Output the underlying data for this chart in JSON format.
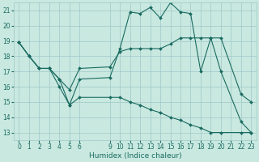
{
  "xlabel": "Humidex (Indice chaleur)",
  "bg_color": "#c8e8e0",
  "grid_color": "#a0c8c8",
  "line_color": "#1a6b60",
  "xlim": [
    -0.5,
    23.5
  ],
  "ylim": [
    12.5,
    21.5
  ],
  "yticks": [
    13,
    14,
    15,
    16,
    17,
    18,
    19,
    20,
    21
  ],
  "xticks": [
    0,
    1,
    2,
    3,
    4,
    5,
    6,
    9,
    10,
    11,
    12,
    13,
    14,
    15,
    16,
    17,
    18,
    19,
    20,
    21,
    22,
    23
  ],
  "line1_x": [
    0,
    1,
    2,
    3,
    4,
    5,
    6,
    9,
    10,
    11,
    12,
    13,
    14,
    15,
    16,
    17,
    18,
    19,
    20,
    22,
    23
  ],
  "line1_y": [
    18.9,
    18.0,
    17.2,
    17.2,
    16.0,
    14.8,
    16.5,
    16.6,
    18.5,
    20.9,
    20.8,
    21.2,
    20.5,
    21.5,
    20.9,
    20.8,
    17.0,
    19.2,
    17.0,
    13.7,
    13.0
  ],
  "line2_x": [
    0,
    1,
    2,
    3,
    4,
    5,
    6,
    9,
    10,
    11,
    12,
    13,
    14,
    15,
    16,
    17,
    18,
    19,
    20,
    22,
    23
  ],
  "line2_y": [
    18.9,
    18.0,
    17.2,
    17.2,
    16.5,
    15.8,
    17.2,
    17.3,
    18.3,
    18.5,
    18.5,
    18.5,
    18.5,
    18.8,
    19.2,
    19.2,
    19.2,
    19.2,
    19.2,
    15.5,
    15.0
  ],
  "line3_x": [
    0,
    1,
    2,
    3,
    4,
    5,
    6,
    9,
    10,
    11,
    12,
    13,
    14,
    15,
    16,
    17,
    18,
    19,
    20,
    22,
    23
  ],
  "line3_y": [
    18.9,
    18.0,
    17.2,
    17.2,
    16.5,
    14.8,
    15.3,
    15.3,
    15.3,
    15.0,
    14.8,
    14.5,
    14.3,
    14.0,
    13.8,
    13.5,
    13.3,
    13.0,
    13.0,
    13.0,
    13.0
  ],
  "tick_fontsize": 5.5,
  "axis_fontsize": 6.5,
  "lw": 0.8,
  "ms": 2.0
}
